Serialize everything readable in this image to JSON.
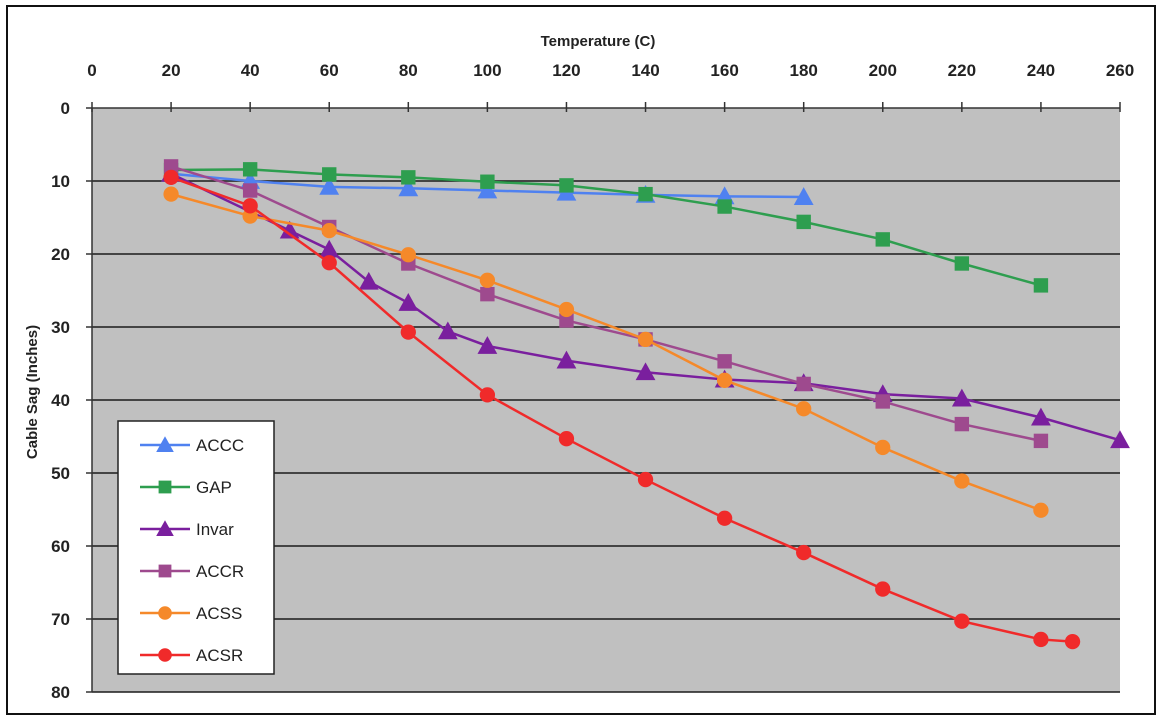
{
  "chart_data": {
    "type": "line",
    "xlabel": "Temperature (C)",
    "ylabel": "Cable Sag (Inches)",
    "xlim": [
      0,
      260
    ],
    "ylim": [
      0,
      80
    ],
    "y_inverted": true,
    "x_axis_position": "top",
    "xticks": [
      0,
      20,
      40,
      60,
      80,
      100,
      120,
      140,
      160,
      180,
      200,
      220,
      240,
      260
    ],
    "yticks": [
      0,
      10,
      20,
      30,
      40,
      50,
      60,
      70,
      80
    ],
    "grid": "horizontal",
    "plot_background": "#c0c0c0",
    "legend_position": "bottom-left",
    "series": [
      {
        "name": "ACCC",
        "color": "#4f81f0",
        "marker": "triangle",
        "points": [
          [
            20,
            9
          ],
          [
            40,
            10
          ],
          [
            60,
            10.8
          ],
          [
            80,
            11
          ],
          [
            100,
            11.3
          ],
          [
            120,
            11.6
          ],
          [
            140,
            11.9
          ],
          [
            160,
            12.1
          ],
          [
            180,
            12.2
          ]
        ]
      },
      {
        "name": "GAP",
        "color": "#2e9e4f",
        "marker": "square",
        "points": [
          [
            20,
            8.5
          ],
          [
            40,
            8.4
          ],
          [
            60,
            9.1
          ],
          [
            80,
            9.5
          ],
          [
            100,
            10.1
          ],
          [
            120,
            10.6
          ],
          [
            140,
            11.8
          ],
          [
            160,
            13.5
          ],
          [
            180,
            15.6
          ],
          [
            200,
            18
          ],
          [
            220,
            21.3
          ],
          [
            240,
            24.3
          ]
        ]
      },
      {
        "name": "Invar",
        "color": "#7a1f9e",
        "marker": "triangle",
        "points": [
          [
            20,
            9
          ],
          [
            50,
            16.8
          ],
          [
            60,
            19.4
          ],
          [
            70,
            23.8
          ],
          [
            80,
            26.7
          ],
          [
            90,
            30.6
          ],
          [
            100,
            32.6
          ],
          [
            120,
            34.6
          ],
          [
            140,
            36.2
          ],
          [
            160,
            37.2
          ],
          [
            180,
            37.7
          ],
          [
            200,
            39.2
          ],
          [
            220,
            39.8
          ],
          [
            240,
            42.4
          ],
          [
            260,
            45.5
          ]
        ]
      },
      {
        "name": "ACCR",
        "color": "#9e4a8e",
        "marker": "square",
        "points": [
          [
            20,
            8
          ],
          [
            40,
            11.3
          ],
          [
            60,
            16.3
          ],
          [
            80,
            21.3
          ],
          [
            100,
            25.5
          ],
          [
            120,
            29.1
          ],
          [
            140,
            31.7
          ],
          [
            160,
            34.7
          ],
          [
            180,
            37.8
          ],
          [
            200,
            40.2
          ],
          [
            220,
            43.3
          ],
          [
            240,
            45.6
          ]
        ]
      },
      {
        "name": "ACSS",
        "color": "#f5892a",
        "marker": "circle",
        "points": [
          [
            20,
            11.8
          ],
          [
            40,
            14.8
          ],
          [
            60,
            16.8
          ],
          [
            80,
            20.1
          ],
          [
            100,
            23.6
          ],
          [
            120,
            27.6
          ],
          [
            140,
            31.7
          ],
          [
            160,
            37.3
          ],
          [
            180,
            41.2
          ],
          [
            200,
            46.5
          ],
          [
            220,
            51.1
          ],
          [
            240,
            55.1
          ]
        ]
      },
      {
        "name": "ACSR",
        "color": "#f02a2a",
        "marker": "circle",
        "points": [
          [
            20,
            9.5
          ],
          [
            40,
            13.4
          ],
          [
            60,
            21.2
          ],
          [
            80,
            30.7
          ],
          [
            100,
            39.3
          ],
          [
            120,
            45.3
          ],
          [
            140,
            50.9
          ],
          [
            160,
            56.2
          ],
          [
            180,
            60.9
          ],
          [
            200,
            65.9
          ],
          [
            220,
            70.3
          ],
          [
            240,
            72.8
          ],
          [
            248,
            73.1
          ]
        ]
      }
    ]
  }
}
